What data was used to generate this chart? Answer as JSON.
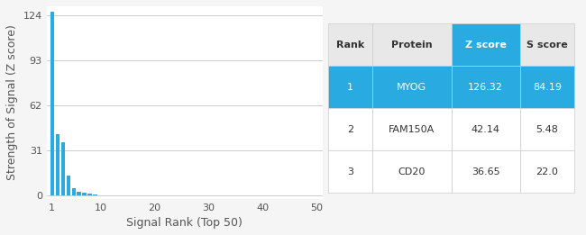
{
  "bar_values": [
    126.32,
    42.14,
    36.65,
    14.0,
    5.0,
    2.5,
    1.8,
    1.2,
    0.8,
    0.5,
    0.3,
    0.2,
    0.15,
    0.1,
    0.08,
    0.06,
    0.05,
    0.04,
    0.03,
    0.025,
    0.02,
    0.018,
    0.015,
    0.012,
    0.01,
    0.009,
    0.008,
    0.007,
    0.006,
    0.005,
    0.005,
    0.004,
    0.004,
    0.003,
    0.003,
    0.003,
    0.002,
    0.002,
    0.002,
    0.002,
    0.002,
    0.001,
    0.001,
    0.001,
    0.001,
    0.001,
    0.001,
    0.001,
    0.001,
    0.001
  ],
  "bar_color": "#29ABE2",
  "bg_color": "#f5f5f5",
  "plot_bg_color": "#ffffff",
  "xlabel": "Signal Rank (Top 50)",
  "ylabel": "Strength of Signal (Z score)",
  "yticks": [
    0,
    31,
    62,
    93,
    124
  ],
  "xticks": [
    1,
    10,
    20,
    30,
    40,
    50
  ],
  "xlim": [
    0,
    51
  ],
  "ylim": [
    -2,
    130
  ],
  "grid_color": "#cccccc",
  "table": {
    "headers": [
      "Rank",
      "Protein",
      "Z score",
      "S score"
    ],
    "rows": [
      [
        "1",
        "MYOG",
        "126.32",
        "84.19"
      ],
      [
        "2",
        "FAM150A",
        "42.14",
        "5.48"
      ],
      [
        "3",
        "CD20",
        "36.65",
        "22.0"
      ]
    ],
    "highlight_row": 0,
    "header_bg": "#29ABE2",
    "header_text_color": "#ffffff",
    "highlight_bg": "#29ABE2",
    "highlight_text_color": "#ffffff",
    "normal_bg": "#ffffff",
    "normal_text_color": "#333333",
    "border_color": "#cccccc"
  }
}
